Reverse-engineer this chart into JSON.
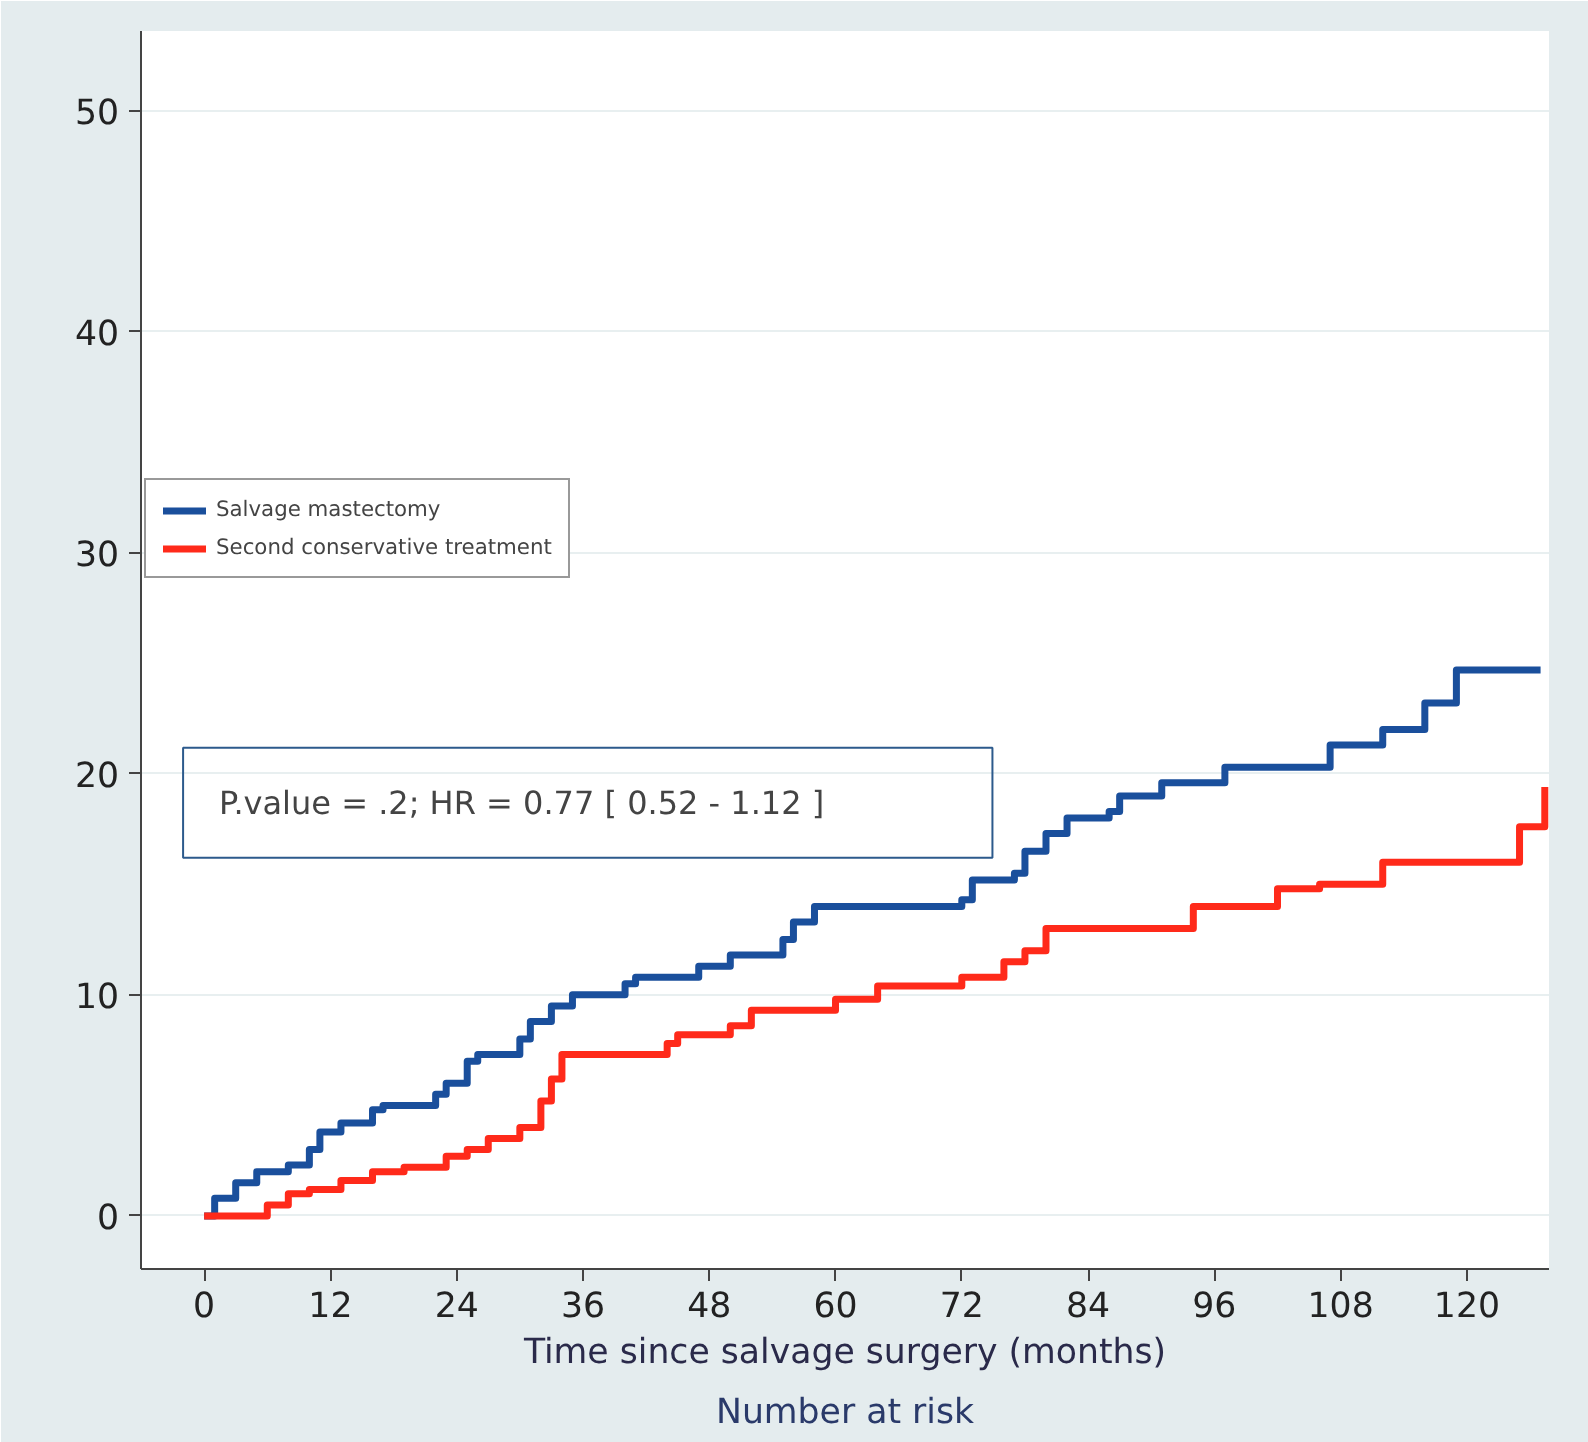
{
  "chart_data": {
    "type": "step",
    "xlabel": "Time since salvage surgery (months)",
    "xlim": [
      -6,
      127.8
    ],
    "ylim": [
      -2.4,
      53.6
    ],
    "xticks": [
      0,
      12,
      24,
      36,
      48,
      60,
      72,
      84,
      96,
      108,
      120
    ],
    "yticks": [
      0,
      10,
      20,
      30,
      40,
      50
    ],
    "grid": "y",
    "legend": "left",
    "line_style": "solid",
    "annotations": [
      "P.value = .2; HR = 0.77 [ 0.52 - 1.12 ]",
      "Number at risk"
    ],
    "series": [
      {
        "name": "Salvage mastectomy",
        "color": "#1a4f9c",
        "x": [
          0,
          1,
          3,
          5,
          8,
          10,
          11,
          13,
          16,
          17,
          22,
          23,
          25,
          26,
          30,
          31,
          33,
          35,
          40,
          41,
          47,
          50,
          55,
          56,
          58,
          72,
          73,
          77,
          78,
          80,
          82,
          86,
          87,
          91,
          97,
          107,
          112,
          116,
          119,
          127
        ],
        "values": [
          0,
          0.8,
          1.5,
          2,
          2.3,
          3,
          3.8,
          4.2,
          4.8,
          5,
          5.5,
          6,
          7,
          7.3,
          8,
          8.8,
          9.5,
          10,
          10.5,
          10.8,
          11.3,
          11.8,
          12.5,
          13.3,
          14,
          14.3,
          15.2,
          15.5,
          16.5,
          17.3,
          18,
          18.3,
          19,
          19.6,
          20.3,
          21.3,
          22,
          23.2,
          24.7,
          24.7
        ]
      },
      {
        "name": "Second conservative treatment",
        "color": "#ff2a1a",
        "x": [
          0,
          5,
          6,
          8,
          10,
          13,
          16,
          19,
          23,
          25,
          27,
          30,
          32,
          33,
          34,
          44,
          45,
          50,
          52,
          60,
          64,
          72,
          76,
          78,
          80,
          94,
          102,
          106,
          112,
          125,
          127.4
        ],
        "values": [
          0,
          0,
          0.5,
          1,
          1.2,
          1.6,
          2,
          2.2,
          2.7,
          3,
          3.5,
          4,
          5.2,
          6.2,
          7.3,
          7.8,
          8.2,
          8.6,
          9.3,
          9.8,
          10.4,
          10.8,
          11.5,
          12,
          13,
          14,
          14.8,
          15,
          16,
          17.6,
          19.4
        ]
      }
    ]
  }
}
